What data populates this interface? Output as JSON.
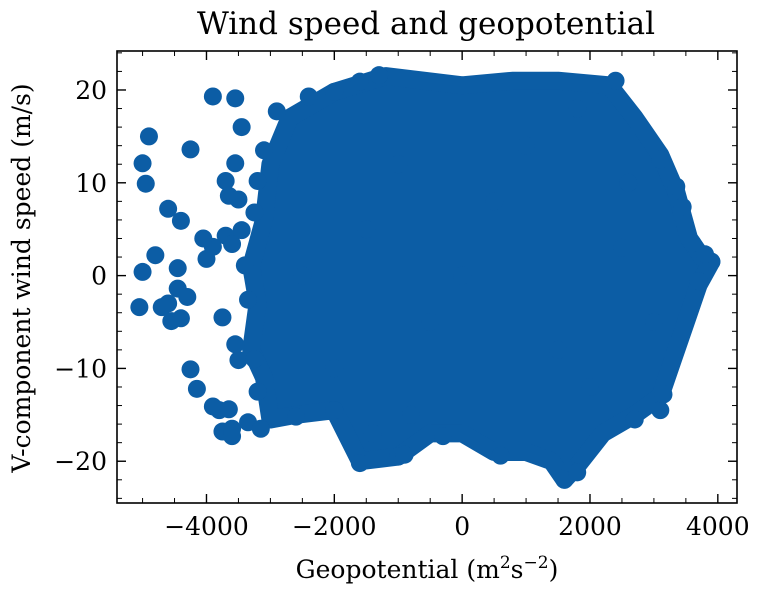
{
  "chart_data": {
    "type": "scatter",
    "title": "Wind speed and geopotential",
    "xlabel": "Geopotential (m",
    "xlabel_sup1": "2",
    "xlabel_mid": "s",
    "xlabel_sup2": "−2",
    "xlabel_end": ")",
    "ylabel": "V-component wind speed (m/s)",
    "xlim": [
      -5400,
      4300
    ],
    "ylim": [
      -24.5,
      24.2
    ],
    "xticks": [
      -4000,
      -2000,
      0,
      2000,
      4000
    ],
    "xtick_labels": [
      "−4000",
      "−2000",
      "0",
      "2000",
      "4000"
    ],
    "yticks": [
      -20,
      -10,
      0,
      10,
      20
    ],
    "ytick_labels": [
      "−20",
      "−10",
      "0",
      "10",
      "20"
    ],
    "marker_color": "#0c5da5",
    "grid": false,
    "dense_cloud": {
      "outline": [
        [
          -3100,
          6
        ],
        [
          -3000,
          12
        ],
        [
          -2700,
          17
        ],
        [
          -2000,
          19.8
        ],
        [
          -1200,
          21.5
        ],
        [
          0,
          20.5
        ],
        [
          800,
          21
        ],
        [
          1500,
          21
        ],
        [
          2300,
          20.5
        ],
        [
          2700,
          17
        ],
        [
          3100,
          13
        ],
        [
          3350,
          9
        ],
        [
          3550,
          4
        ],
        [
          3750,
          2
        ],
        [
          3900,
          1.5
        ],
        [
          3700,
          -1
        ],
        [
          3500,
          -5
        ],
        [
          3300,
          -9
        ],
        [
          3100,
          -13
        ],
        [
          2700,
          -15
        ],
        [
          2200,
          -17
        ],
        [
          1800,
          -20.5
        ],
        [
          1600,
          -22
        ],
        [
          1400,
          -20
        ],
        [
          1000,
          -19
        ],
        [
          500,
          -19
        ],
        [
          0,
          -17
        ],
        [
          -500,
          -17
        ],
        [
          -1000,
          -19.5
        ],
        [
          -1600,
          -20
        ],
        [
          -2000,
          -14.5
        ],
        [
          -2600,
          -15
        ],
        [
          -3000,
          -15.5
        ],
        [
          -3100,
          -11
        ],
        [
          -3300,
          -8
        ],
        [
          -3200,
          -3
        ],
        [
          -3300,
          1
        ]
      ],
      "interior_points": [
        [
          -2500,
          0
        ],
        [
          -1500,
          5
        ],
        [
          -500,
          -5
        ],
        [
          500,
          8
        ],
        [
          1500,
          -8
        ],
        [
          2500,
          3
        ],
        [
          0,
          0
        ],
        [
          -1000,
          12
        ],
        [
          1000,
          14
        ],
        [
          2000,
          -12
        ],
        [
          -2000,
          -10
        ],
        [
          3000,
          -5
        ],
        [
          1800,
          18
        ],
        [
          -800,
          -15
        ],
        [
          2600,
          10
        ]
      ]
    },
    "points": [
      [
        -5000,
        12.1
      ],
      [
        -4900,
        15.0
      ],
      [
        -4950,
        9.9
      ],
      [
        -4800,
        2.2
      ],
      [
        -5000,
        0.4
      ],
      [
        -5050,
        -3.4
      ],
      [
        -4700,
        -3.4
      ],
      [
        -4600,
        -3.0
      ],
      [
        -4550,
        -4.9
      ],
      [
        -4400,
        -4.6
      ],
      [
        -4450,
        -1.4
      ],
      [
        -4450,
        0.8
      ],
      [
        -4300,
        -2.3
      ],
      [
        -4600,
        7.2
      ],
      [
        -4400,
        5.9
      ],
      [
        -4250,
        13.6
      ],
      [
        -3900,
        19.3
      ],
      [
        -3550,
        19.1
      ],
      [
        -3450,
        16.0
      ],
      [
        -3550,
        12.1
      ],
      [
        -3700,
        10.2
      ],
      [
        -3650,
        8.6
      ],
      [
        -3500,
        8.2
      ],
      [
        -3900,
        3.1
      ],
      [
        -3700,
        4.3
      ],
      [
        -3600,
        3.4
      ],
      [
        -3450,
        4.9
      ],
      [
        -3400,
        1.1
      ],
      [
        -4000,
        1.8
      ],
      [
        -4050,
        4.0
      ],
      [
        -3750,
        -4.5
      ],
      [
        -3550,
        -7.4
      ],
      [
        -3500,
        -9.1
      ],
      [
        -4250,
        -10.1
      ],
      [
        -4150,
        -12.2
      ],
      [
        -3900,
        -14.1
      ],
      [
        -3800,
        -14.5
      ],
      [
        -3650,
        -14.4
      ],
      [
        -3750,
        -16.8
      ],
      [
        -3600,
        -16.5
      ],
      [
        -3600,
        -17.3
      ],
      [
        -3350,
        -15.8
      ],
      [
        -3150,
        -16.5
      ],
      [
        -3200,
        -12.5
      ],
      [
        -3250,
        -9.0
      ],
      [
        -3350,
        -2.6
      ],
      [
        -3250,
        6.8
      ],
      [
        -3200,
        10.2
      ],
      [
        -3100,
        13.5
      ],
      [
        -2900,
        17.7
      ],
      [
        -2400,
        19.3
      ],
      [
        -2000,
        19.8
      ],
      [
        -1300,
        21.6
      ],
      [
        -1600,
        20.9
      ],
      [
        2400,
        21.0
      ],
      [
        3900,
        1.5
      ],
      [
        3800,
        2.3
      ],
      [
        3700,
        -0.6
      ],
      [
        3600,
        3.5
      ],
      [
        3450,
        7.4
      ],
      [
        3350,
        9.6
      ],
      [
        3100,
        12.5
      ],
      [
        3100,
        -14.5
      ],
      [
        3150,
        -12.8
      ],
      [
        2700,
        -15.5
      ],
      [
        1700,
        -21.0
      ],
      [
        1600,
        -22.0
      ],
      [
        1800,
        -21.2
      ],
      [
        -1600,
        -20.2
      ],
      [
        -1000,
        -19.5
      ],
      [
        -900,
        -19.3
      ],
      [
        -300,
        -17.3
      ],
      [
        600,
        -19.4
      ],
      [
        -2600,
        -15.2
      ],
      [
        -2000,
        -14.5
      ],
      [
        -1400,
        -17.0
      ]
    ]
  }
}
